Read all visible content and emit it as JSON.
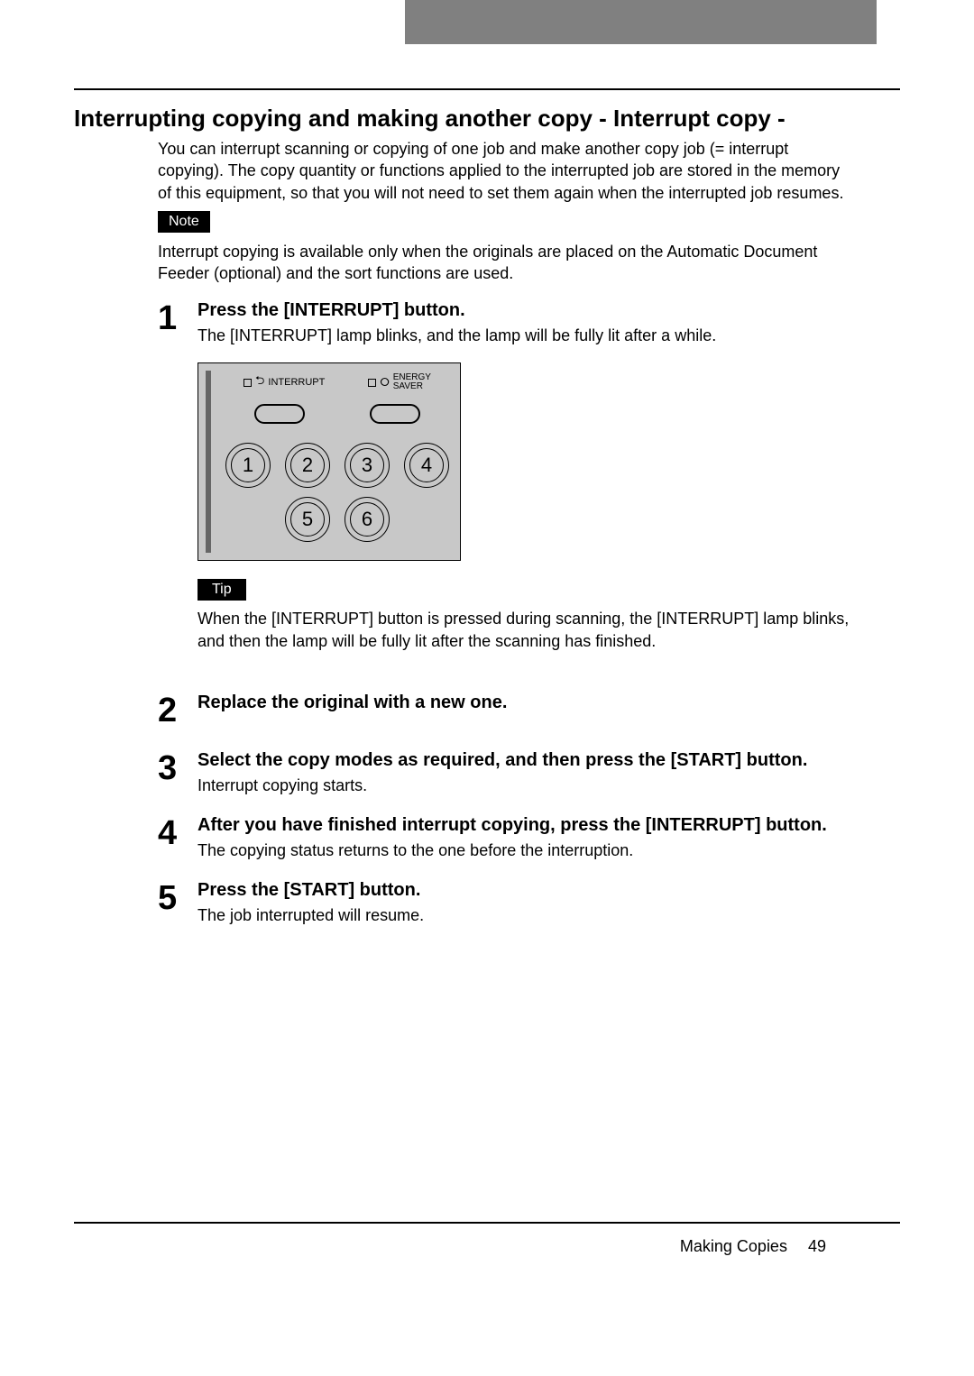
{
  "title": "Interrupting copying and making another copy - Interrupt copy -",
  "intro": "You can interrupt scanning or copying of one job and make another copy job (= interrupt copying). The copy quantity or functions applied to the interrupted job are stored in the memory of this equipment, so that you will not need to set them again when the interrupted job resumes.",
  "note": {
    "label": "Note",
    "text": "Interrupt copying is available only when the originals are placed on the Automatic Document Feeder (optional) and the sort functions are used."
  },
  "panel": {
    "interrupt_label": "INTERRUPT",
    "energy_line1": "ENERGY",
    "energy_line2": "SAVER",
    "keys": [
      "1",
      "2",
      "3",
      "4",
      "5",
      "6"
    ],
    "bg": "#c8c8c8"
  },
  "steps": [
    {
      "n": "1",
      "title": "Press the [INTERRUPT] button.",
      "desc": "The [INTERRUPT] lamp blinks, and the lamp will be fully lit after a while.",
      "tip_label": "Tip",
      "tip": "When the [INTERRUPT] button is pressed during scanning, the [INTERRUPT] lamp blinks, and then the lamp will be fully lit after the scanning has finished."
    },
    {
      "n": "2",
      "title": "Replace the original with a new one."
    },
    {
      "n": "3",
      "title": "Select the copy modes as required, and then press the [START] button.",
      "desc": "Interrupt copying starts."
    },
    {
      "n": "4",
      "title": "After you have finished interrupt copying, press the [INTERRUPT] button.",
      "desc": "The copying status returns to the one before the interruption."
    },
    {
      "n": "5",
      "title": "Press the [START] button.",
      "desc": "The job interrupted will resume."
    }
  ],
  "footer": {
    "section": "Making Copies",
    "page": "49"
  }
}
